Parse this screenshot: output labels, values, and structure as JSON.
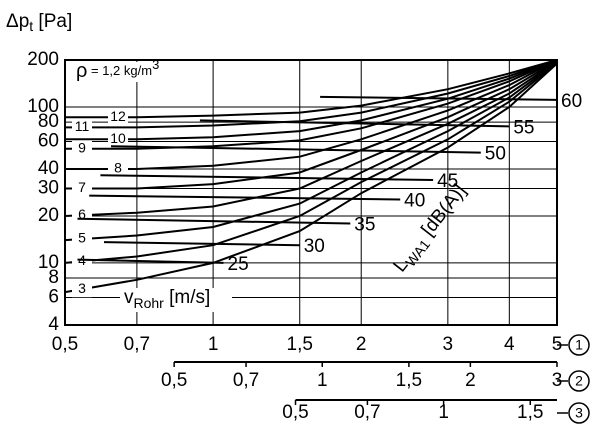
{
  "chart_data": {
    "type": "line",
    "xscale": "log",
    "yscale": "log",
    "grid": true,
    "ylabel": [
      "Δp",
      "t",
      " [Pa]"
    ],
    "density_note": [
      "ρ",
      " = 1,2 kg/m",
      "3"
    ],
    "xlabel": [
      "v",
      "Rohr",
      " [m/s]"
    ],
    "level_label": [
      "L",
      "WA1",
      " [dB(A)]"
    ],
    "xlim": [
      0.5,
      5
    ],
    "xticks": [
      {
        "value": 0.5,
        "label": "0,5"
      },
      {
        "value": 0.7,
        "label": "0,7"
      },
      1,
      {
        "value": 1.5,
        "label": "1,5"
      },
      2,
      3,
      4,
      5
    ],
    "x_axis_marker": "1",
    "ylim": [
      4,
      200
    ],
    "yticks": [
      4,
      6,
      8,
      10,
      20,
      30,
      40,
      60,
      80,
      100,
      200
    ],
    "secondary_x_axes": [
      {
        "xlim": [
          0.5,
          3
        ],
        "xticks": [
          {
            "value": 0.5,
            "label": "0,5"
          },
          {
            "value": 0.7,
            "label": "0,7"
          },
          1,
          {
            "value": 1.5,
            "label": "1,5"
          },
          2,
          3
        ],
        "marker": "2"
      },
      {
        "xlim": [
          0.5,
          1.7
        ],
        "xticks": [
          {
            "value": 0.5,
            "label": "0,5"
          },
          {
            "value": 0.7,
            "label": "0,7"
          },
          1,
          {
            "value": 1.5,
            "label": "1,5"
          }
        ],
        "marker": "3"
      }
    ],
    "series": [
      {
        "name": "3",
        "color": "#000000",
        "x": [
          0.5,
          0.7,
          1,
          1.5,
          2,
          3,
          4,
          5
        ],
        "values": [
          6.5,
          7.8,
          10,
          16,
          28,
          55,
          100,
          190
        ]
      },
      {
        "name": "4",
        "color": "#000000",
        "x": [
          0.5,
          0.7,
          1,
          1.5,
          2,
          3,
          4,
          5
        ],
        "values": [
          10,
          11,
          13,
          20,
          33,
          62,
          108,
          192
        ]
      },
      {
        "name": "5",
        "color": "#000000",
        "x": [
          0.5,
          0.7,
          1,
          1.5,
          2,
          3,
          4,
          5
        ],
        "values": [
          14,
          15,
          17,
          24,
          38,
          70,
          115,
          194
        ]
      },
      {
        "name": "6",
        "color": "#000000",
        "x": [
          0.5,
          0.7,
          1,
          1.5,
          2,
          3,
          4,
          5
        ],
        "values": [
          20,
          21,
          23,
          30,
          45,
          78,
          122,
          196
        ]
      },
      {
        "name": "7",
        "color": "#000000",
        "x": [
          0.5,
          0.7,
          1,
          1.5,
          2,
          3,
          4,
          5
        ],
        "values": [
          30,
          30,
          32,
          38,
          53,
          86,
          130,
          198
        ]
      },
      {
        "name": "8",
        "color": "#000000",
        "x": [
          0.5,
          0.7,
          1,
          1.5,
          2,
          3,
          4,
          5
        ],
        "values": [
          40,
          40,
          42,
          48,
          62,
          95,
          138,
          200
        ]
      },
      {
        "name": "9",
        "color": "#000000",
        "x": [
          0.5,
          0.7,
          1,
          1.5,
          2,
          3,
          4,
          5
        ],
        "values": [
          54,
          54,
          56,
          61,
          73,
          105,
          146,
          200
        ]
      },
      {
        "name": "10",
        "color": "#000000",
        "x": [
          0.5,
          0.7,
          1,
          1.5,
          2,
          3,
          4,
          5
        ],
        "values": [
          62,
          62,
          64,
          70,
          82,
          113,
          152,
          200
        ]
      },
      {
        "name": "11",
        "color": "#000000",
        "x": [
          0.5,
          0.7,
          1,
          1.5,
          2,
          3,
          4,
          5
        ],
        "values": [
          74,
          74,
          76,
          81,
          92,
          122,
          158,
          200
        ]
      },
      {
        "name": "12",
        "color": "#000000",
        "x": [
          0.5,
          0.7,
          1,
          1.5,
          2,
          3,
          4,
          5
        ],
        "values": [
          86,
          86,
          88,
          92,
          102,
          130,
          164,
          200
        ]
      }
    ],
    "level_lines": [
      {
        "name": "25",
        "color": "#000000",
        "x": [
          0.53,
          1.05
        ],
        "values": [
          10.5,
          10
        ]
      },
      {
        "name": "30",
        "color": "#000000",
        "x": [
          0.6,
          1.5
        ],
        "values": [
          13.6,
          13
        ]
      },
      {
        "name": "35",
        "color": "#000000",
        "x": [
          0.53,
          1.9
        ],
        "values": [
          19.2,
          17.9
        ]
      },
      {
        "name": "40",
        "color": "#000000",
        "x": [
          0.56,
          2.4
        ],
        "values": [
          27,
          25.5
        ]
      },
      {
        "name": "45",
        "color": "#000000",
        "x": [
          0.59,
          2.8
        ],
        "values": [
          36.5,
          34
        ]
      },
      {
        "name": "50",
        "color": "#000000",
        "x": [
          0.62,
          3.5
        ],
        "values": [
          56,
          51
        ]
      },
      {
        "name": "55",
        "color": "#000000",
        "x": [
          0.94,
          4.0
        ],
        "values": [
          82,
          75
        ]
      },
      {
        "name": "60",
        "color": "#000000",
        "x": [
          1.65,
          5
        ],
        "values": [
          116,
          111
        ]
      }
    ]
  }
}
